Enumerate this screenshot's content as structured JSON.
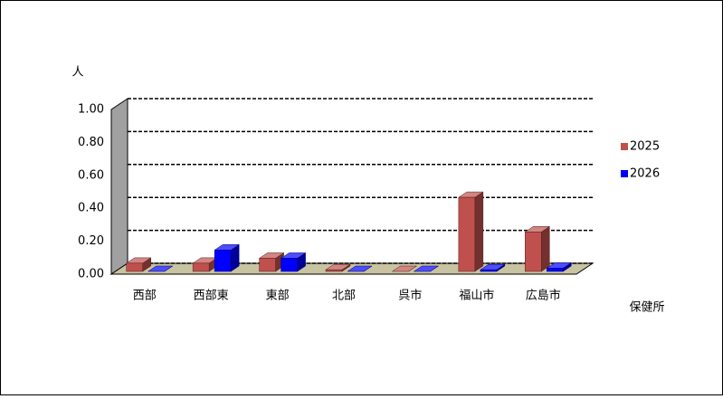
{
  "chart_data": {
    "type": "bar3d",
    "y_label": "人",
    "x_label": "保健所",
    "categories": [
      "西部",
      "西部東",
      "東部",
      "北部",
      "呉市",
      "福山市",
      "広島市"
    ],
    "series": [
      {
        "name": "2025",
        "color": "#c0504d",
        "values": [
          0.05,
          0.05,
          0.08,
          0.01,
          0.0,
          0.45,
          0.24
        ]
      },
      {
        "name": "2026",
        "color": "#0000ff",
        "values": [
          0.0,
          0.13,
          0.08,
          0.0,
          0.0,
          0.01,
          0.02
        ]
      }
    ],
    "ylim": [
      0,
      1
    ],
    "yticks": [
      {
        "value": 0,
        "label": "0.00"
      },
      {
        "value": 0.2,
        "label": "0.20"
      },
      {
        "value": 0.4,
        "label": "0.40"
      },
      {
        "value": 0.6,
        "label": "0.60"
      },
      {
        "value": 0.8,
        "label": "0.80"
      },
      {
        "value": 1,
        "label": "1.00"
      }
    ],
    "grid": true,
    "legend": "right"
  }
}
